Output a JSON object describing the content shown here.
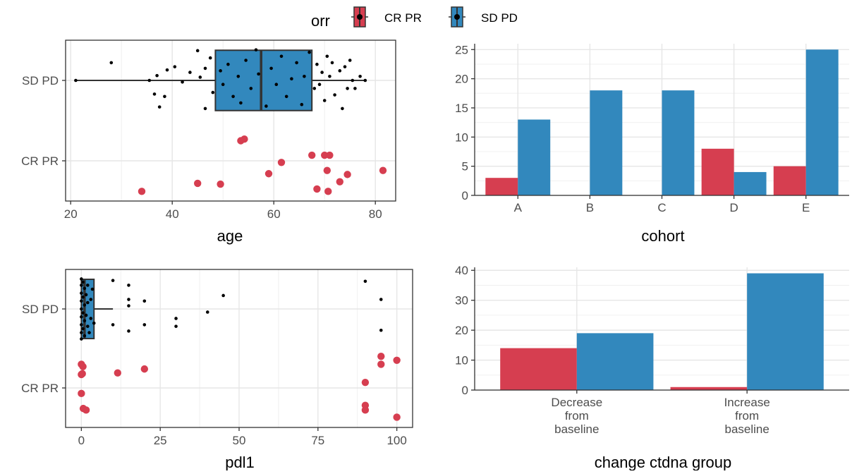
{
  "legend": {
    "title": "orr",
    "items": [
      {
        "label": "CR PR",
        "color": "#D63E50"
      },
      {
        "label": "SD PD",
        "color": "#3288BD"
      }
    ]
  },
  "chart_data": [
    {
      "type": "boxplot",
      "xlabel": "age",
      "ylabel": "",
      "xlim": [
        19,
        84
      ],
      "xticks": [
        20,
        40,
        60,
        80
      ],
      "categories": [
        "CR PR",
        "SD PD"
      ],
      "boxes": [
        {
          "category": "SD PD",
          "color": "#3288BD",
          "whisker_low": 21,
          "q1": 48.5,
          "median": 57.5,
          "q3": 67.5,
          "whisker_high": 78
        }
      ],
      "points": {
        "CR PR": [
          {
            "x": 34,
            "jitter": -0.38
          },
          {
            "x": 45,
            "jitter": -0.28
          },
          {
            "x": 49.5,
            "jitter": -0.29
          },
          {
            "x": 53.5,
            "jitter": 0.25
          },
          {
            "x": 54.2,
            "jitter": 0.27
          },
          {
            "x": 59,
            "jitter": -0.16
          },
          {
            "x": 61.5,
            "jitter": -0.02
          },
          {
            "x": 67.5,
            "jitter": 0.07
          },
          {
            "x": 68.5,
            "jitter": -0.35
          },
          {
            "x": 70,
            "jitter": 0.07
          },
          {
            "x": 70.5,
            "jitter": -0.12
          },
          {
            "x": 70.7,
            "jitter": -0.38
          },
          {
            "x": 71,
            "jitter": 0.07
          },
          {
            "x": 73,
            "jitter": -0.26
          },
          {
            "x": 74.5,
            "jitter": -0.17
          },
          {
            "x": 81.5,
            "jitter": -0.12
          }
        ],
        "SD PD": [
          {
            "x": 21,
            "jitter": 0.0
          },
          {
            "x": 28,
            "jitter": 0.22
          },
          {
            "x": 35.5,
            "jitter": 0.0
          },
          {
            "x": 36.5,
            "jitter": -0.17
          },
          {
            "x": 37,
            "jitter": 0.06
          },
          {
            "x": 37.5,
            "jitter": -0.33
          },
          {
            "x": 38.5,
            "jitter": -0.2
          },
          {
            "x": 39,
            "jitter": 0.13
          },
          {
            "x": 40.5,
            "jitter": 0.17
          },
          {
            "x": 42,
            "jitter": -0.02
          },
          {
            "x": 43.5,
            "jitter": 0.1
          },
          {
            "x": 45,
            "jitter": 0.37
          },
          {
            "x": 45.5,
            "jitter": 0.04
          },
          {
            "x": 46.5,
            "jitter": 0.15
          },
          {
            "x": 46.5,
            "jitter": -0.35
          },
          {
            "x": 47.5,
            "jitter": 0.28
          },
          {
            "x": 48,
            "jitter": -0.15
          },
          {
            "x": 49.5,
            "jitter": 0.12
          },
          {
            "x": 50,
            "jitter": -0.05
          },
          {
            "x": 51,
            "jitter": 0.2
          },
          {
            "x": 52,
            "jitter": -0.2
          },
          {
            "x": 53,
            "jitter": 0.05
          },
          {
            "x": 53.5,
            "jitter": -0.28
          },
          {
            "x": 54.5,
            "jitter": 0.25
          },
          {
            "x": 55.5,
            "jitter": -0.1
          },
          {
            "x": 56.5,
            "jitter": 0.38
          },
          {
            "x": 57,
            "jitter": 0.08
          },
          {
            "x": 58.5,
            "jitter": -0.32
          },
          {
            "x": 59.5,
            "jitter": 0.15
          },
          {
            "x": 60.5,
            "jitter": -0.05
          },
          {
            "x": 61.5,
            "jitter": 0.3
          },
          {
            "x": 62.5,
            "jitter": -0.2
          },
          {
            "x": 63.5,
            "jitter": 0.02
          },
          {
            "x": 64.5,
            "jitter": 0.22
          },
          {
            "x": 65.5,
            "jitter": -0.3
          },
          {
            "x": 66,
            "jitter": 0.05
          },
          {
            "x": 67,
            "jitter": 0.35
          },
          {
            "x": 68,
            "jitter": -0.1
          },
          {
            "x": 68.5,
            "jitter": 0.2
          },
          {
            "x": 69,
            "jitter": -0.05
          },
          {
            "x": 69.5,
            "jitter": 0.1
          },
          {
            "x": 70,
            "jitter": -0.25
          },
          {
            "x": 70.5,
            "jitter": 0.3
          },
          {
            "x": 71,
            "jitter": 0.05
          },
          {
            "x": 71.5,
            "jitter": 0.22
          },
          {
            "x": 72,
            "jitter": -0.18
          },
          {
            "x": 73,
            "jitter": 0.12
          },
          {
            "x": 73.5,
            "jitter": -0.35
          },
          {
            "x": 74,
            "jitter": 0.17
          },
          {
            "x": 74.5,
            "jitter": -0.1
          },
          {
            "x": 75,
            "jitter": 0.25
          },
          {
            "x": 75.5,
            "jitter": 0.0
          },
          {
            "x": 76,
            "jitter": -0.1
          },
          {
            "x": 77,
            "jitter": 0.05
          },
          {
            "x": 78,
            "jitter": 0.0
          }
        ]
      }
    },
    {
      "type": "bar",
      "xlabel": "cohort",
      "ylabel": "",
      "ylim": [
        0,
        26
      ],
      "yticks": [
        0,
        5,
        10,
        15,
        20,
        25
      ],
      "categories": [
        "A",
        "B",
        "C",
        "D",
        "E"
      ],
      "series": [
        {
          "name": "CR PR",
          "color": "#D63E50",
          "values": [
            3,
            0,
            0,
            8,
            5
          ]
        },
        {
          "name": "SD PD",
          "color": "#3288BD",
          "values": [
            13,
            18,
            18,
            4,
            25
          ]
        }
      ]
    },
    {
      "type": "boxplot",
      "xlabel": "pdl1",
      "ylabel": "",
      "xlim": [
        -5,
        105
      ],
      "xticks": [
        0,
        25,
        50,
        75,
        100
      ],
      "categories": [
        "CR PR",
        "SD PD"
      ],
      "boxes": [
        {
          "category": "SD PD",
          "color": "#3288BD",
          "whisker_low": 0,
          "q1": 0,
          "median": 1,
          "q3": 4,
          "whisker_high": 10
        }
      ],
      "points": {
        "CR PR": [
          {
            "x": 0,
            "jitter": 0.3
          },
          {
            "x": 0.3,
            "jitter": 0.18
          },
          {
            "x": 0.5,
            "jitter": 0.27
          },
          {
            "x": 0,
            "jitter": 0.17
          },
          {
            "x": 0,
            "jitter": -0.07
          },
          {
            "x": 0.6,
            "jitter": -0.26
          },
          {
            "x": 1.5,
            "jitter": -0.28
          },
          {
            "x": 11.5,
            "jitter": 0.19
          },
          {
            "x": 20,
            "jitter": 0.24
          },
          {
            "x": 90,
            "jitter": 0.07
          },
          {
            "x": 90,
            "jitter": -0.22
          },
          {
            "x": 90,
            "jitter": -0.28
          },
          {
            "x": 95,
            "jitter": 0.4
          },
          {
            "x": 95,
            "jitter": 0.3
          },
          {
            "x": 100,
            "jitter": 0.35
          },
          {
            "x": 100,
            "jitter": -0.37
          }
        ],
        "SD PD": [
          {
            "x": 0,
            "jitter": 0.38
          },
          {
            "x": 0,
            "jitter": 0.3
          },
          {
            "x": 0,
            "jitter": 0.2
          },
          {
            "x": 0,
            "jitter": 0.1
          },
          {
            "x": 0,
            "jitter": 0.0
          },
          {
            "x": 0,
            "jitter": -0.1
          },
          {
            "x": 0,
            "jitter": -0.2
          },
          {
            "x": 0,
            "jitter": -0.3
          },
          {
            "x": 0,
            "jitter": -0.38
          },
          {
            "x": 0.5,
            "jitter": 0.34
          },
          {
            "x": 0.5,
            "jitter": 0.15
          },
          {
            "x": 0.5,
            "jitter": -0.05
          },
          {
            "x": 0.5,
            "jitter": -0.25
          },
          {
            "x": 1,
            "jitter": 0.26
          },
          {
            "x": 1,
            "jitter": 0.05
          },
          {
            "x": 1,
            "jitter": -0.15
          },
          {
            "x": 1,
            "jitter": -0.34
          },
          {
            "x": 1.5,
            "jitter": 0.18
          },
          {
            "x": 1.5,
            "jitter": -0.08
          },
          {
            "x": 2,
            "jitter": 0.3
          },
          {
            "x": 2,
            "jitter": 0.08
          },
          {
            "x": 2,
            "jitter": -0.22
          },
          {
            "x": 2.5,
            "jitter": -0.3
          },
          {
            "x": 3,
            "jitter": 0.12
          },
          {
            "x": 3,
            "jitter": -0.12
          },
          {
            "x": 3.5,
            "jitter": 0.25
          },
          {
            "x": 4,
            "jitter": -0.18
          },
          {
            "x": 10,
            "jitter": 0.36
          },
          {
            "x": 10,
            "jitter": -0.2
          },
          {
            "x": 15,
            "jitter": 0.3
          },
          {
            "x": 15,
            "jitter": 0.12
          },
          {
            "x": 15,
            "jitter": 0.04
          },
          {
            "x": 15,
            "jitter": -0.28
          },
          {
            "x": 20,
            "jitter": 0.1
          },
          {
            "x": 20,
            "jitter": -0.2
          },
          {
            "x": 30,
            "jitter": -0.12
          },
          {
            "x": 30,
            "jitter": -0.22
          },
          {
            "x": 40,
            "jitter": -0.04
          },
          {
            "x": 45,
            "jitter": 0.17
          },
          {
            "x": 90,
            "jitter": 0.35
          },
          {
            "x": 95,
            "jitter": 0.12
          },
          {
            "x": 95,
            "jitter": -0.27
          }
        ]
      }
    },
    {
      "type": "bar",
      "xlabel": "change ctdna group",
      "ylabel": "",
      "ylim": [
        0,
        41
      ],
      "yticks": [
        0,
        10,
        20,
        30,
        40
      ],
      "categories": [
        "Decrease from baseline",
        "Increase from baseline"
      ],
      "category_lines": [
        [
          "Decrease",
          "from",
          "baseline"
        ],
        [
          "Increase",
          "from",
          "baseline"
        ]
      ],
      "series": [
        {
          "name": "CR PR",
          "color": "#D63E50",
          "values": [
            14,
            1
          ]
        },
        {
          "name": "SD PD",
          "color": "#3288BD",
          "values": [
            19,
            39
          ]
        }
      ]
    }
  ]
}
